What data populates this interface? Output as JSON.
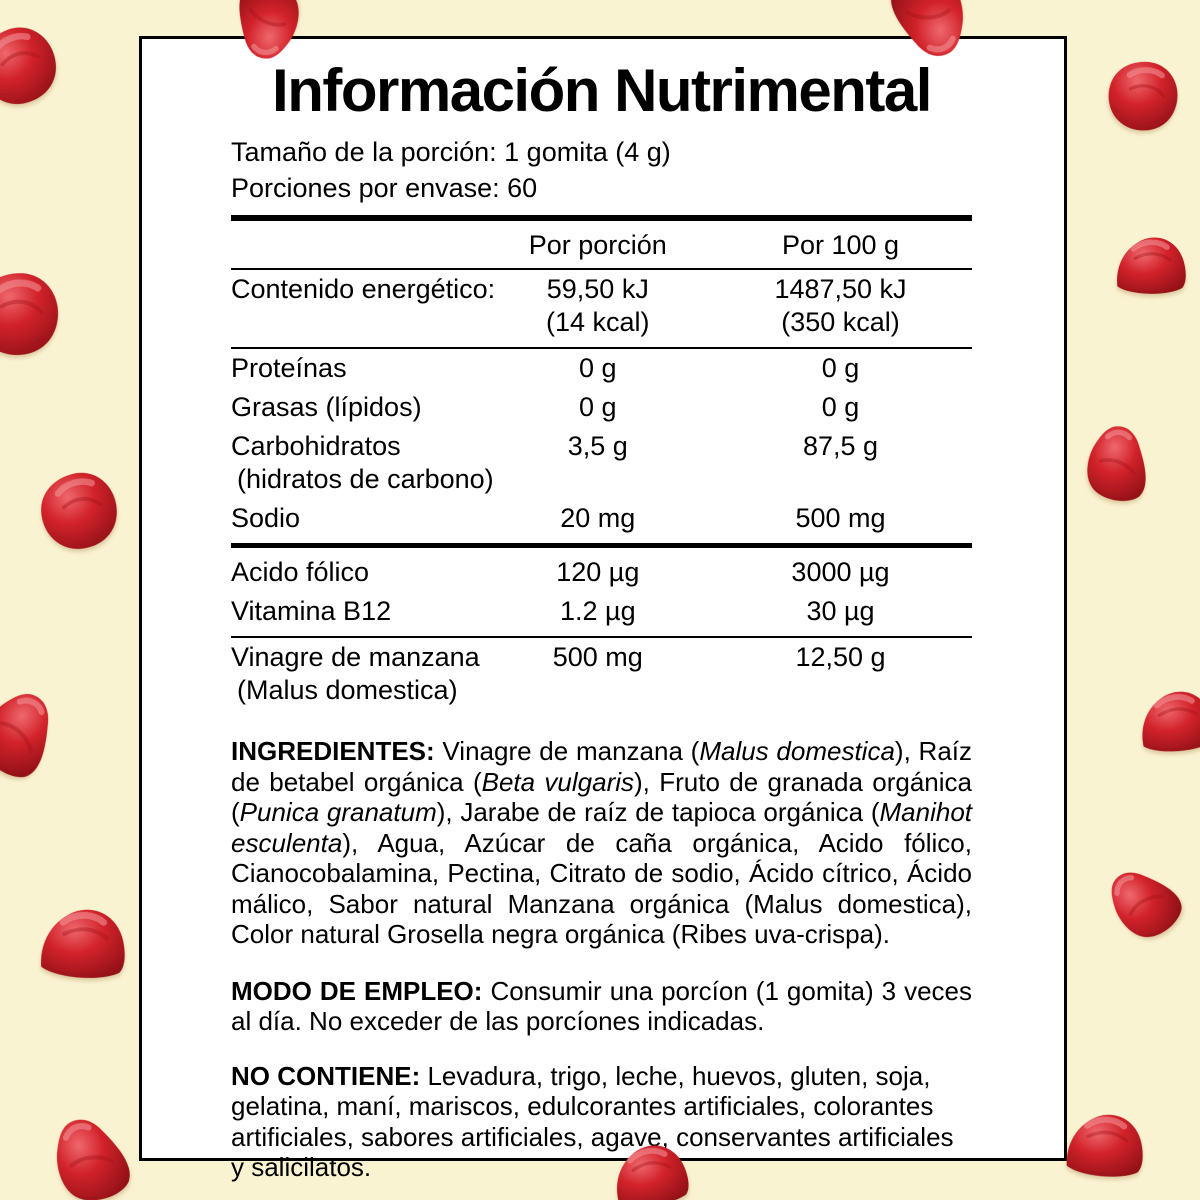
{
  "canvas": {
    "background_color": "#FAF3D2"
  },
  "panel": {
    "title": "Información Nutrimental",
    "serving_size": "Tamaño de la porción: 1 gomita (4 g)",
    "servings_per_container": "Porciones por envase: 60",
    "bg_color": "#FFFFFF",
    "border_color": "#000000"
  },
  "table": {
    "col1_header": "Por porción",
    "col2_header": "Por 100 g",
    "rows": [
      {
        "label": "Contenido energético:",
        "v1": "59,50 kJ",
        "v1_sub": "(14 kcal)",
        "v2": "1487,50 kJ",
        "v2_sub": "(350 kcal)",
        "rule_after": "thin"
      },
      {
        "label": "Proteínas",
        "v1": "0 g",
        "v2": "0 g"
      },
      {
        "label": "Grasas (lípidos)",
        "v1": "0 g",
        "v2": "0 g"
      },
      {
        "label": "Carbohidratos",
        "label_sub": "(hidratos de carbono)",
        "v1": "3,5 g",
        "v2": "87,5 g"
      },
      {
        "label": "Sodio",
        "v1": "20 mg",
        "v2": "500 mg",
        "rule_after": "thick"
      },
      {
        "label": "Acido fólico",
        "v1": "120 µg",
        "v2": "3000 µg"
      },
      {
        "label": "Vitamina B12",
        "v1": "1.2 µg",
        "v2": "30 µg",
        "rule_after": "thin"
      },
      {
        "label": "Vinagre de manzana",
        "label_sub": "(Malus domestica)",
        "v1": "500 mg",
        "v2": "12,50 g"
      }
    ]
  },
  "sections": {
    "ingredientes": [
      {
        "t": "INGREDIENTES:",
        "b": true
      },
      {
        "t": " Vinagre de manzana ("
      },
      {
        "t": "Malus domestica",
        "i": true
      },
      {
        "t": "), Raíz de betabel orgánica ("
      },
      {
        "t": "Beta vulgaris",
        "i": true
      },
      {
        "t": "), Fruto de granada orgánica ("
      },
      {
        "t": "Punica granatum",
        "i": true
      },
      {
        "t": "), Jarabe de raíz de tapioca orgánica ("
      },
      {
        "t": "Manihot esculenta",
        "i": true
      },
      {
        "t": "), Agua, Azúcar de caña orgánica, Acido fólico, Cianocobalamina, Pectina, Citrato de sodio, Ácido cítrico, Ácido málico, Sabor natural Manzana orgánica (Malus domestica), Color natural Grosella negra orgánica (Ribes uva-crispa)."
      }
    ],
    "modo_de_empleo": [
      {
        "t": "MODO DE EMPLEO:",
        "b": true
      },
      {
        "t": " Consumir una porcíon (1 gomita) 3 veces al día. No exceder de las porcíones indicadas."
      }
    ],
    "no_contiene": [
      {
        "t": "NO CONTIENE:",
        "b": true
      },
      {
        "t": " Levadura, trigo, leche, huevos, gluten, soja, gelatina, maní, mariscos, edulcorantes artificiales, colorantes artificiales, sabores artificiales, agave, conservantes artificiales y salicilatos."
      }
    ]
  },
  "decor": {
    "gummy_icon_name": "gummy-icon",
    "gummy_count": 15,
    "gummy_red": "#D2222A",
    "gummy_red_light": "#EE686D",
    "gummy_red_dark": "#931117"
  }
}
